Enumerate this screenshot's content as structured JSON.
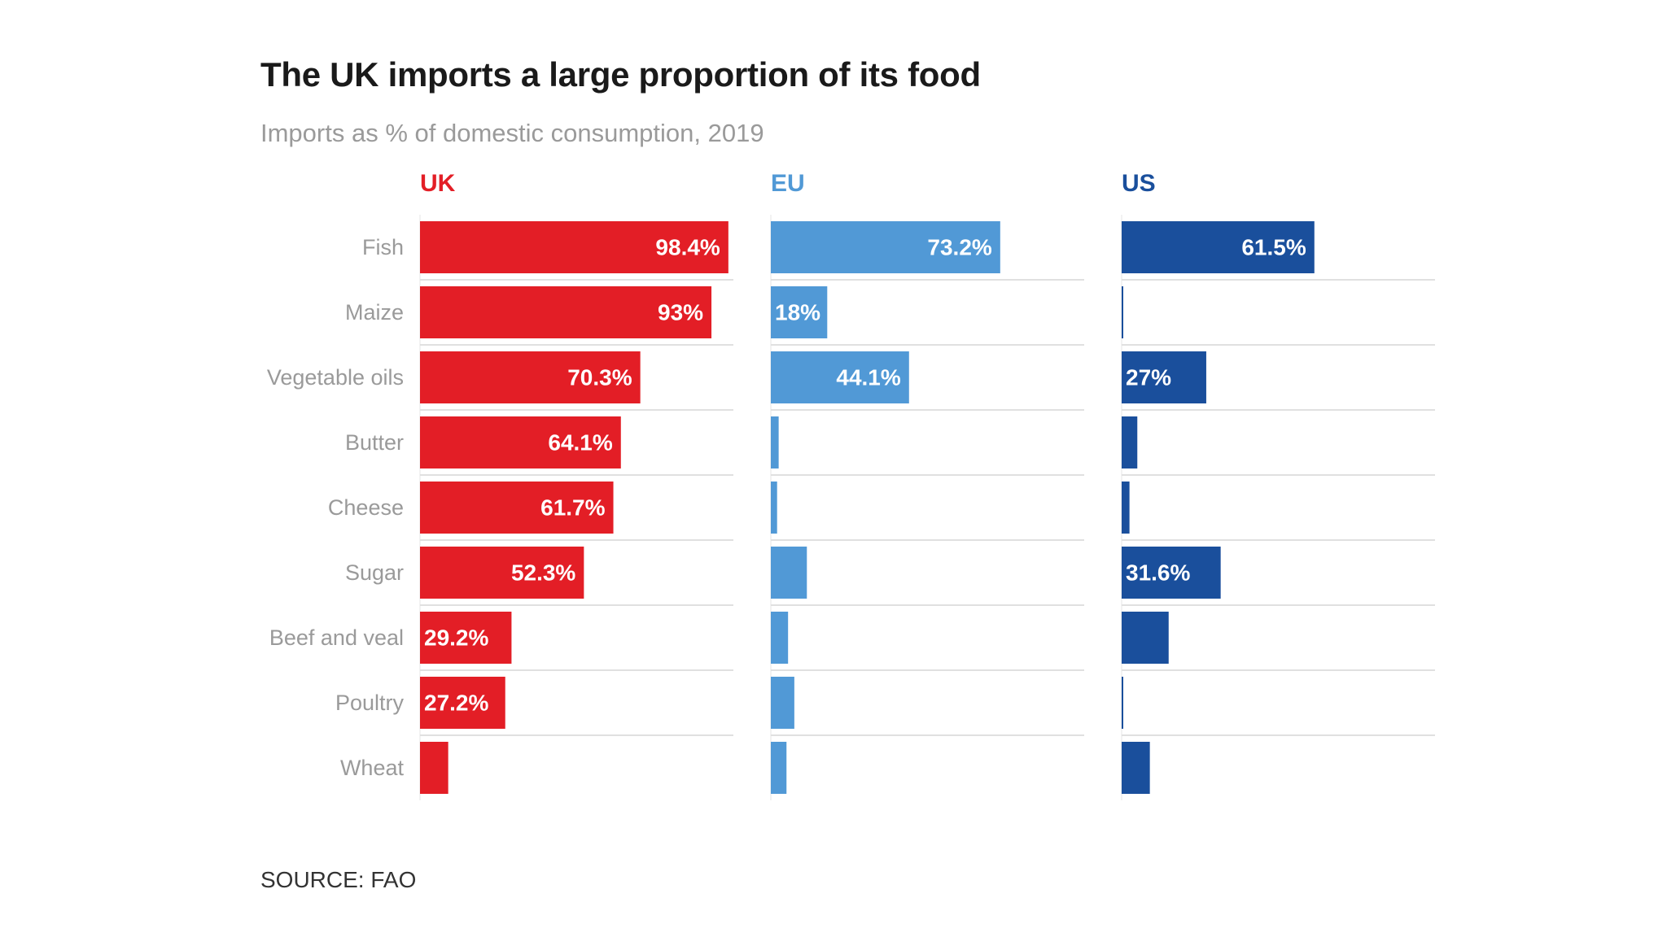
{
  "chart_data": {
    "type": "bar",
    "orientation": "horizontal",
    "title": "The UK imports a large proportion of its food",
    "subtitle": "Imports as % of domestic consumption, 2019",
    "source": "SOURCE: FAO",
    "categories": [
      "Fish",
      "Maize",
      "Vegetable oils",
      "Butter",
      "Cheese",
      "Sugar",
      "Beef and veal",
      "Poultry",
      "Wheat"
    ],
    "xlim": [
      0,
      100
    ],
    "grid": false,
    "series": [
      {
        "name": "UK",
        "color": "#e31e26",
        "values": [
          98.4,
          93,
          70.3,
          64.1,
          61.7,
          52.3,
          29.2,
          27.2,
          9
        ],
        "labels": [
          "98.4%",
          "93%",
          "70.3%",
          "64.1%",
          "61.7%",
          "52.3%",
          "29.2%",
          "27.2%",
          ""
        ]
      },
      {
        "name": "EU",
        "color": "#5199d6",
        "values": [
          73.2,
          18,
          44.1,
          2.5,
          2,
          11.5,
          5.5,
          7.5,
          5
        ],
        "labels": [
          "73.2%",
          "18%",
          "44.1%",
          "",
          "",
          "",
          "",
          "",
          ""
        ]
      },
      {
        "name": "US",
        "color": "#1a4f9c",
        "values": [
          61.5,
          0.5,
          27,
          5,
          2.5,
          31.6,
          15,
          0.5,
          9
        ],
        "labels": [
          "61.5%",
          "",
          "27%",
          "",
          "",
          "31.6%",
          "",
          "",
          ""
        ]
      }
    ]
  }
}
